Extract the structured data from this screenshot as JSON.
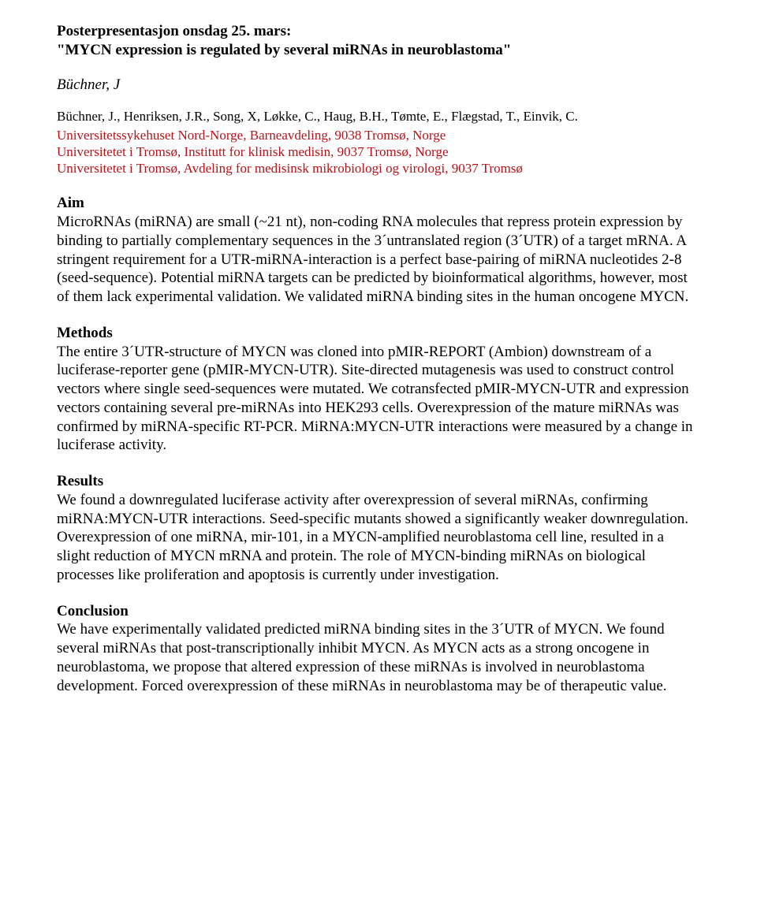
{
  "header": {
    "line1": "Posterpresentasjon onsdag 25. mars:",
    "line2": "\"MYCN expression is regulated by several miRNAs in neuroblastoma\""
  },
  "presenter_italic": "Büchner, J",
  "authors_line": "Büchner, J., Henriksen, J.R., Song, X, Løkke, C., Haug, B.H., Tømte, E., Flægstad, T., Einvik, C.",
  "affiliations": {
    "a1": "Universitetssykehuset Nord-Norge, Barneavdeling, 9038 Tromsø, Norge",
    "a2": "Universitetet i Tromsø, Institutt for klinisk medisin, 9037 Tromsø, Norge",
    "a3": "Universitetet i Tromsø, Avdeling for medisinsk mikrobiologi og virologi, 9037 Tromsø"
  },
  "sections": {
    "aim": {
      "title": "Aim",
      "body": "MicroRNAs (miRNA) are small (~21 nt), non-coding RNA molecules that repress protein expression by binding to partially complementary sequences in the 3´untranslated region (3´UTR) of a target mRNA. A stringent requirement for a UTR-miRNA-interaction is a perfect base-pairing of miRNA nucleotides 2-8 (seed-sequence). Potential miRNA targets can be predicted by bioinformatical algorithms, however, most of them lack experimental validation. We validated miRNA binding sites in the human oncogene MYCN."
    },
    "methods": {
      "title": "Methods",
      "body": "The entire 3´UTR-structure of MYCN was cloned into pMIR-REPORT (Ambion) downstream of a luciferase-reporter gene (pMIR-MYCN-UTR). Site-directed mutagenesis was used to construct control vectors where single seed-sequences were mutated. We cotransfected pMIR-MYCN-UTR and expression vectors containing several pre-miRNAs into HEK293 cells. Overexpression of the mature miRNAs was confirmed by miRNA-specific RT-PCR. MiRNA:MYCN-UTR interactions were measured by a change in luciferase activity."
    },
    "results": {
      "title": "Results",
      "body": "We found a downregulated luciferase activity after overexpression of several miRNAs, confirming miRNA:MYCN-UTR interactions. Seed-specific mutants showed a significantly weaker downregulation. Overexpression of one miRNA, mir-101, in a MYCN-amplified neuroblastoma cell line, resulted in a slight reduction of MYCN mRNA and protein. The role of MYCN-binding miRNAs on biological processes like proliferation and apoptosis is currently under investigation."
    },
    "conclusion": {
      "title": "Conclusion",
      "body": "We have experimentally validated predicted miRNA binding sites in the 3´UTR of MYCN. We found several miRNAs that post-transcriptionally inhibit MYCN. As MYCN acts as a strong oncogene in neuroblastoma, we propose that altered expression of these miRNAs is involved in neuroblastoma development. Forced overexpression of these miRNAs in neuroblastoma may be of therapeutic value."
    }
  }
}
